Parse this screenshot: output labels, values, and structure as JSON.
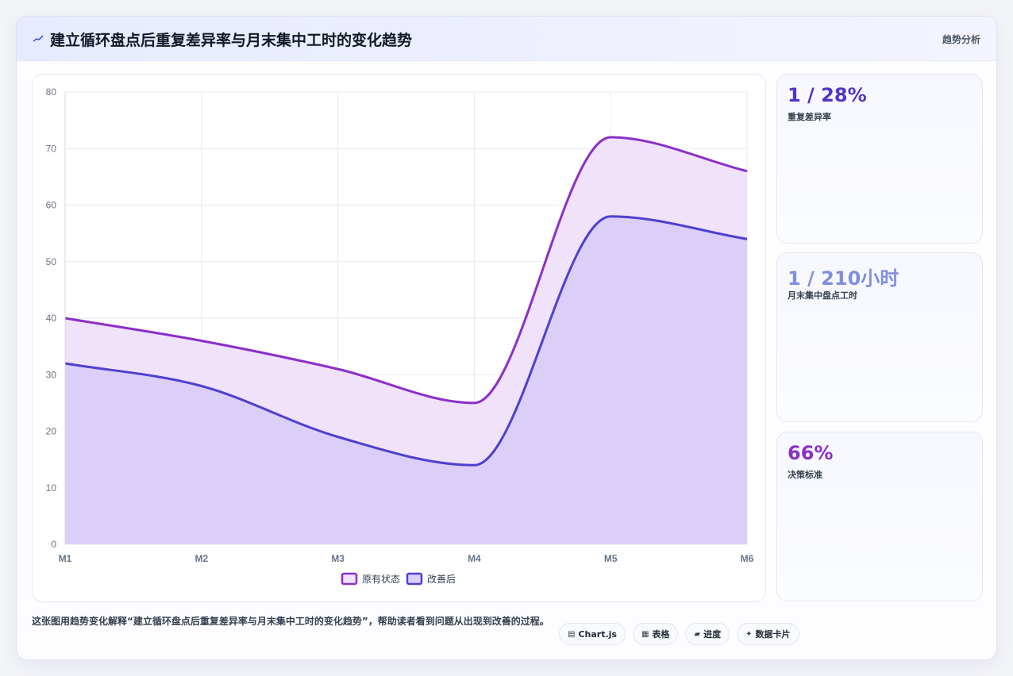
{
  "header": {
    "title": "建立循环盘点后重复差异率与月末集中工时的变化趋势",
    "tag": "趋势分析"
  },
  "kpis": [
    {
      "value": "1 / 28%",
      "label": "重复差异率",
      "color": "#4f35c9"
    },
    {
      "value": "1 / 210小时",
      "label": "月末集中盘点工时",
      "color": "#7f8fe0"
    },
    {
      "value": "66%",
      "label": "决策标准",
      "color": "#8b2fc9"
    }
  ],
  "footer": {
    "description": "这张图用趋势变化解释“建立循环盘点后重复差异率与月末集中工时的变化趋势”，帮助读者看到问题从出现到改善的过程。",
    "pills": [
      {
        "icon": "chart-icon",
        "glyph": "▤",
        "label": "Chart.js"
      },
      {
        "icon": "table-icon",
        "glyph": "▦",
        "label": "表格"
      },
      {
        "icon": "progress-icon",
        "glyph": "▰",
        "label": "进度"
      },
      {
        "icon": "sparkle-icon",
        "glyph": "✦",
        "label": "数据卡片"
      }
    ]
  },
  "chart_data": {
    "type": "area",
    "categories": [
      "M1",
      "M2",
      "M3",
      "M4",
      "M5",
      "M6"
    ],
    "series": [
      {
        "name": "原有状态",
        "values": [
          40,
          36,
          31,
          25,
          72,
          66
        ],
        "color": "#8b2fc9",
        "fill": "#efe2fa"
      },
      {
        "name": "改善后",
        "values": [
          32,
          28,
          19,
          14,
          58,
          54
        ],
        "color": "#4f3fd0",
        "fill": "#dccff7"
      }
    ],
    "ylim": [
      0,
      80
    ],
    "yticks": [
      0,
      10,
      20,
      30,
      40,
      50,
      60,
      70,
      80
    ],
    "grid": true,
    "legend": "bottom-center",
    "title": "",
    "xlabel": "",
    "ylabel": ""
  }
}
